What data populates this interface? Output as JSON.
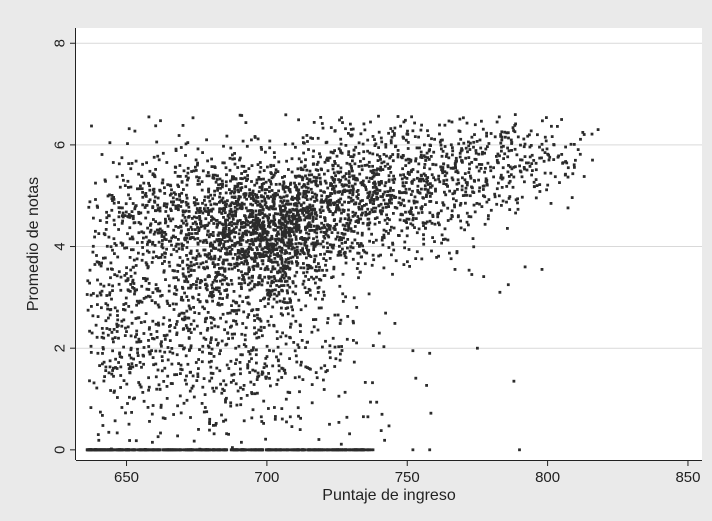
{
  "chart_data": {
    "type": "scatter",
    "xlabel": "Puntaje de ingreso",
    "ylabel": "Promedio de notas",
    "xlim": [
      632,
      855
    ],
    "ylim": [
      -0.2,
      8.3
    ],
    "xticks": [
      650,
      700,
      750,
      800,
      850
    ],
    "yticks": [
      0,
      2,
      4,
      6,
      8
    ],
    "grid": "horizontal",
    "marker_color": "#2b2b2b",
    "background_color": "#eaeaea",
    "plot_background_color": "#ffffff",
    "clusters": [
      {
        "cx": 700,
        "cy": 4.4,
        "sx": 14,
        "sy": 0.45,
        "n": 700
      },
      {
        "cx": 680,
        "cy": 4.6,
        "sx": 22,
        "sy": 0.7,
        "n": 600
      },
      {
        "cx": 720,
        "cy": 4.8,
        "sx": 22,
        "sy": 0.7,
        "n": 600
      },
      {
        "cx": 700,
        "cy": 3.4,
        "sx": 16,
        "sy": 0.45,
        "n": 350
      },
      {
        "cx": 665,
        "cy": 3.3,
        "sx": 18,
        "sy": 1.2,
        "n": 450
      },
      {
        "cx": 745,
        "cy": 5.2,
        "sx": 18,
        "sy": 0.6,
        "n": 550
      },
      {
        "cx": 775,
        "cy": 5.6,
        "sx": 15,
        "sy": 0.5,
        "n": 260
      },
      {
        "cx": 800,
        "cy": 5.8,
        "sx": 9,
        "sy": 0.4,
        "n": 70
      },
      {
        "cx": 690,
        "cy": 1.8,
        "sx": 25,
        "sy": 0.8,
        "n": 450
      },
      {
        "cx": 650,
        "cy": 2.5,
        "sx": 10,
        "sy": 1.3,
        "n": 200
      }
    ],
    "zero_band": {
      "x_start": 636,
      "x_end": 738,
      "y": 0.0,
      "n": 500
    },
    "outliers": [
      {
        "x": 752,
        "y": 0
      },
      {
        "x": 758,
        "y": 0
      },
      {
        "x": 790,
        "y": 0
      },
      {
        "x": 788,
        "y": 1.35
      },
      {
        "x": 775,
        "y": 2.0
      },
      {
        "x": 783,
        "y": 3.1
      },
      {
        "x": 786,
        "y": 3.25
      },
      {
        "x": 792,
        "y": 3.6
      },
      {
        "x": 798,
        "y": 3.55
      },
      {
        "x": 767,
        "y": 3.55
      },
      {
        "x": 773,
        "y": 3.45
      },
      {
        "x": 805,
        "y": 6.5
      },
      {
        "x": 818,
        "y": 6.3
      },
      {
        "x": 816,
        "y": 5.7
      },
      {
        "x": 782,
        "y": 6.45
      },
      {
        "x": 703,
        "y": 0.6
      },
      {
        "x": 707,
        "y": 0.55
      },
      {
        "x": 712,
        "y": 0.62
      },
      {
        "x": 698,
        "y": 0.65
      },
      {
        "x": 736,
        "y": 0.65
      },
      {
        "x": 741,
        "y": 0.7
      },
      {
        "x": 758,
        "y": 1.9
      },
      {
        "x": 752,
        "y": 1.95
      },
      {
        "x": 740,
        "y": 6.25
      }
    ]
  }
}
